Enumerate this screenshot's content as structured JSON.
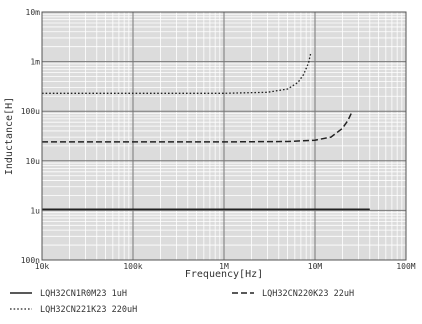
{
  "chart_data": {
    "type": "line",
    "title": "",
    "xlabel": "Frequency[Hz]",
    "ylabel": "Inductance[H]",
    "x_scale": "log",
    "y_scale": "log",
    "xlim": [
      10000,
      100000000
    ],
    "ylim": [
      1e-07,
      0.01
    ],
    "grid": true,
    "background": "#dcdcdc",
    "x_ticks": [
      {
        "value": 10000,
        "label": "10k"
      },
      {
        "value": 100000,
        "label": "100k"
      },
      {
        "value": 1000000,
        "label": "1M"
      },
      {
        "value": 10000000,
        "label": "10M"
      },
      {
        "value": 100000000,
        "label": "100M"
      }
    ],
    "y_ticks": [
      {
        "value": 1e-07,
        "label": "100n"
      },
      {
        "value": 1e-06,
        "label": "1u"
      },
      {
        "value": 1e-05,
        "label": "10u"
      },
      {
        "value": 0.0001,
        "label": "100u"
      },
      {
        "value": 0.001,
        "label": "1m"
      },
      {
        "value": 0.01,
        "label": "10m"
      }
    ],
    "legend_position": "bottom",
    "series": [
      {
        "name": "LQH32CN1R0M23 1uH",
        "style": "solid",
        "color": "#222222",
        "x": [
          10000,
          100000,
          1000000,
          10000000,
          40000000
        ],
        "y": [
          1.05e-06,
          1.05e-06,
          1.05e-06,
          1.05e-06,
          1.05e-06
        ]
      },
      {
        "name": "LQH32CN220K23 22uH",
        "style": "dashed",
        "color": "#222222",
        "x": [
          10000,
          100000,
          1000000,
          5000000,
          10000000,
          15000000,
          20000000,
          23000000,
          25000000
        ],
        "y": [
          2.4e-05,
          2.4e-05,
          2.4e-05,
          2.45e-05,
          2.6e-05,
          3e-05,
          4.5e-05,
          6.5e-05,
          9e-05
        ]
      },
      {
        "name": "LQH32CN221K23 220uH",
        "style": "dotted",
        "color": "#222222",
        "x": [
          10000,
          100000,
          1000000,
          3000000,
          5000000,
          6500000,
          7500000,
          8500000,
          9000000
        ],
        "y": [
          0.00023,
          0.00023,
          0.00023,
          0.00024,
          0.00028,
          0.00038,
          0.00055,
          0.00095,
          0.0015
        ]
      }
    ]
  }
}
